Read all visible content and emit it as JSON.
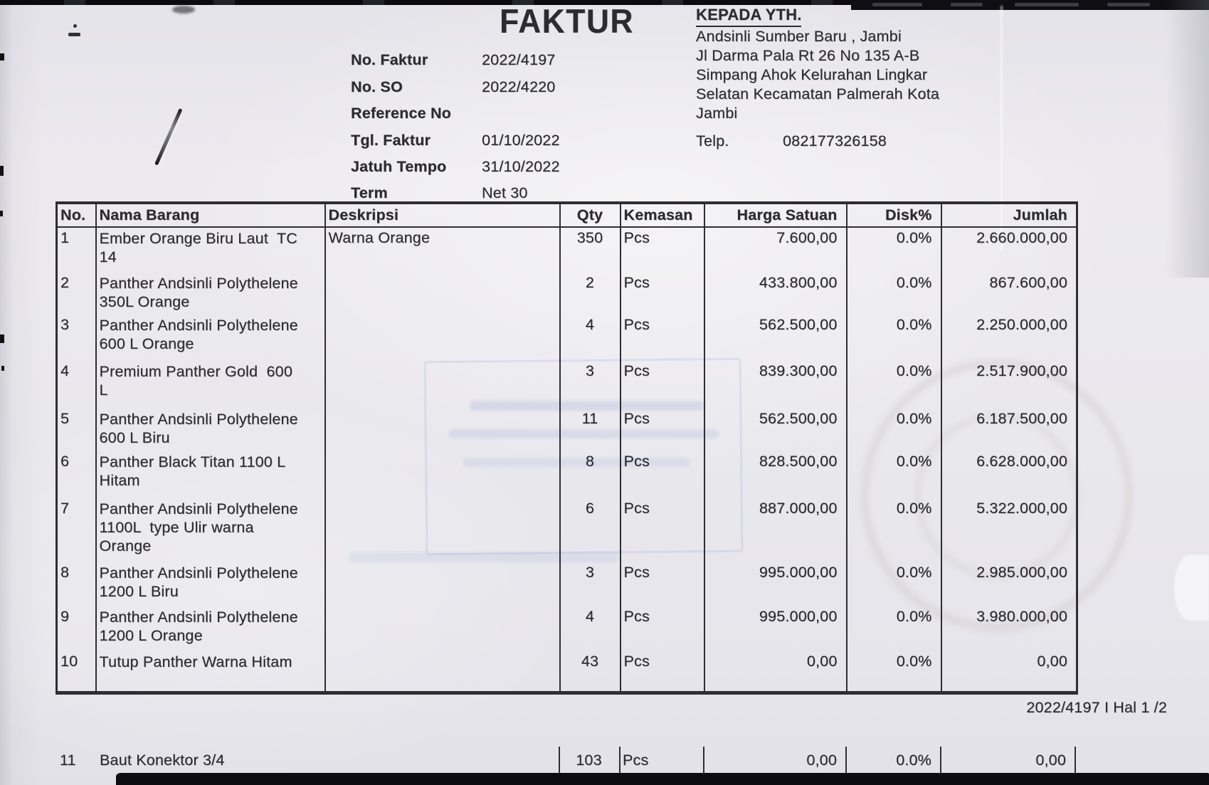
{
  "title": "FAKTUR",
  "meta": {
    "fields": [
      {
        "label": "No. Faktur",
        "value": "2022/4197"
      },
      {
        "label": "No. SO",
        "value": "2022/4220"
      },
      {
        "label": "Reference No",
        "value": ""
      },
      {
        "label": "Tgl. Faktur",
        "value": "01/10/2022"
      },
      {
        "label": "Jatuh Tempo",
        "value": "31/10/2022"
      },
      {
        "label": "Term",
        "value": "Net 30"
      }
    ]
  },
  "recipient": {
    "heading": "KEPADA YTH.",
    "lines": [
      "Andsinli Sumber Baru , Jambi",
      "Jl Darma Pala Rt 26 No 135 A-B",
      "Simpang Ahok Kelurahan Lingkar",
      "Selatan Kecamatan Palmerah Kota",
      "Jambi"
    ],
    "phone_label": "Telp.",
    "phone": "082177326158"
  },
  "table": {
    "headers": [
      "No.",
      "Nama Barang",
      "Deskripsi",
      "Qty",
      "Kemasan",
      "Harga Satuan",
      "Disk%",
      "Jumlah"
    ],
    "rows": [
      {
        "no": "1",
        "name": "Ember Orange Biru Laut  TC\n14",
        "desc": "Warna Orange",
        "qty": "350",
        "unit": "Pcs",
        "price": "7.600,00",
        "disc": "0.0%",
        "total": "2.660.000,00"
      },
      {
        "no": "2",
        "name": "Panther Andsinli Polythelene\n350L Orange",
        "desc": "",
        "qty": "2",
        "unit": "Pcs",
        "price": "433.800,00",
        "disc": "0.0%",
        "total": "867.600,00"
      },
      {
        "no": "3",
        "name": "Panther Andsinli Polythelene\n600 L Orange",
        "desc": "",
        "qty": "4",
        "unit": "Pcs",
        "price": "562.500,00",
        "disc": "0.0%",
        "total": "2.250.000,00"
      },
      {
        "no": "4",
        "name": "Premium Panther Gold  600\nL",
        "desc": "",
        "qty": "3",
        "unit": "Pcs",
        "price": "839.300,00",
        "disc": "0.0%",
        "total": "2.517.900,00"
      },
      {
        "no": "5",
        "name": "Panther Andsinli Polythelene\n600 L Biru",
        "desc": "",
        "qty": "11",
        "unit": "Pcs",
        "price": "562.500,00",
        "disc": "0.0%",
        "total": "6.187.500,00"
      },
      {
        "no": "6",
        "name": "Panther Black Titan 1100 L\nHitam",
        "desc": "",
        "qty": "8",
        "unit": "Pcs",
        "price": "828.500,00",
        "disc": "0.0%",
        "total": "6.628.000,00"
      },
      {
        "no": "7",
        "name": "Panther Andsinli Polythelene\n1100L  type Ulir warna\nOrange",
        "desc": "",
        "qty": "6",
        "unit": "Pcs",
        "price": "887.000,00",
        "disc": "0.0%",
        "total": "5.322.000,00"
      },
      {
        "no": "8",
        "name": "Panther Andsinli Polythelene\n1200 L Biru",
        "desc": "",
        "qty": "3",
        "unit": "Pcs",
        "price": "995.000,00",
        "disc": "0.0%",
        "total": "2.985.000,00"
      },
      {
        "no": "9",
        "name": "Panther Andsinli Polythelene\n1200 L Orange",
        "desc": "",
        "qty": "4",
        "unit": "Pcs",
        "price": "995.000,00",
        "disc": "0.0%",
        "total": "3.980.000,00"
      },
      {
        "no": "10",
        "name": "Tutup Panther Warna Hitam",
        "desc": "",
        "qty": "43",
        "unit": "Pcs",
        "price": "0,00",
        "disc": "0.0%",
        "total": "0,00"
      }
    ],
    "partial_row": {
      "no": "11",
      "name": "Baut Konektor 3/4",
      "qty": "103",
      "unit": "Pcs",
      "price": "0,00",
      "disc": "0.0%",
      "total": "0,00"
    }
  },
  "footer": "2022/4197 I Hal 1 /2"
}
